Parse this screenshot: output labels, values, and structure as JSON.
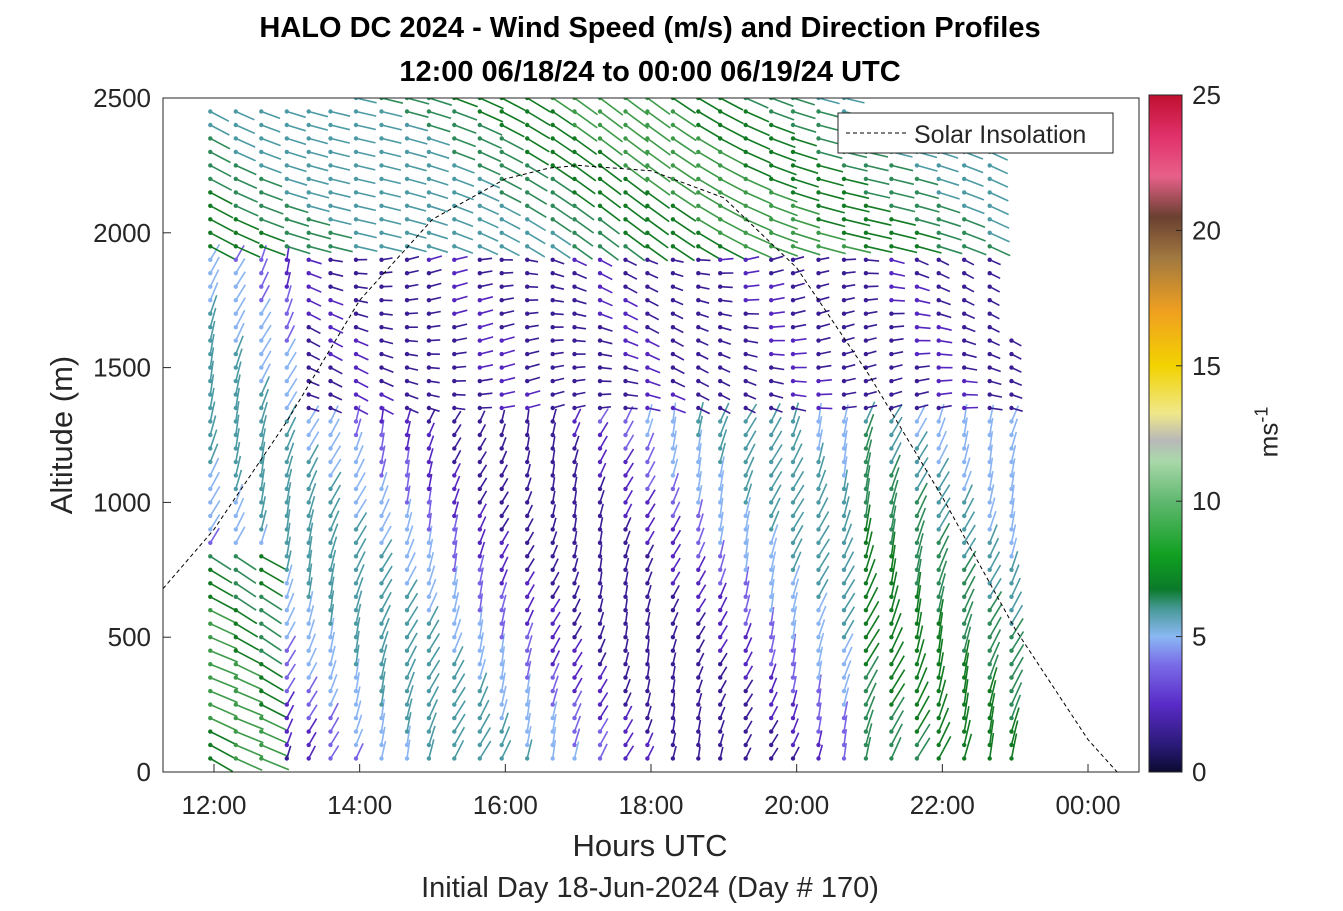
{
  "title_line1": "HALO DC 2024 - Wind Speed (m/s) and Direction Profiles",
  "title_line2": "12:00 06/18/24 to 00:00 06/19/24  UTC",
  "subtitle": "Initial Day 18-Jun-2024 (Day # 170)",
  "colorbar": {
    "label_base": "ms",
    "label_exp": "-1",
    "min": 0,
    "max": 25,
    "ticks": [
      0,
      5,
      10,
      15,
      20,
      25
    ]
  },
  "chart_data": {
    "type": "quiver",
    "xlabel": "Hours UTC",
    "ylabel": "Altitude (m)",
    "xlim": [
      11.3,
      24.7
    ],
    "ylim": [
      0,
      2500
    ],
    "xticks": [
      12,
      14,
      16,
      18,
      20,
      22,
      24
    ],
    "xtick_labels": [
      "12:00",
      "14:00",
      "16:00",
      "18:00",
      "20:00",
      "22:00",
      "00:00"
    ],
    "yticks": [
      0,
      500,
      1000,
      1500,
      2000,
      2500
    ],
    "legend": {
      "entries": [
        "Solar Insolation"
      ],
      "position": "top-right"
    },
    "solar_insolation": {
      "x": [
        11.3,
        12.0,
        13.0,
        14.0,
        15.0,
        16.0,
        16.6,
        17.0,
        18.0,
        19.0,
        20.0,
        21.0,
        22.0,
        23.0,
        24.0,
        24.4,
        24.6
      ],
      "y": [
        680,
        900,
        1300,
        1750,
        2050,
        2200,
        2240,
        2250,
        2230,
        2130,
        1870,
        1470,
        1020,
        530,
        120,
        0,
        0
      ]
    },
    "profile_times": [
      11.95,
      12.3,
      12.65,
      13.0,
      13.3,
      13.6,
      13.95,
      14.3,
      14.65,
      14.95,
      15.3,
      15.65,
      15.95,
      16.3,
      16.65,
      16.95,
      17.3,
      17.65,
      17.95,
      18.3,
      18.65,
      18.95,
      19.3,
      19.65,
      19.95,
      20.3,
      20.65,
      20.95,
      21.3,
      21.65,
      21.95,
      22.3,
      22.65,
      22.95
    ],
    "altitude_step_m": 50,
    "notes_regions": [
      {
        "alt_range": [
          0,
          800
        ],
        "time_range": [
          11.9,
          13.0
        ],
        "speed_ms": 8,
        "direction": "from west-southwest"
      },
      {
        "alt_range": [
          0,
          1300
        ],
        "time_range": [
          13.0,
          23.0
        ],
        "speed_ms": 3,
        "direction": "from north-northeast"
      },
      {
        "alt_range": [
          1300,
          1900
        ],
        "time_range": [
          13.0,
          23.0
        ],
        "speed_ms": 1.5,
        "direction": "from east"
      },
      {
        "alt_range": [
          1900,
          2500
        ],
        "time_range": [
          12.0,
          23.0
        ],
        "speed_ms": 6,
        "direction": "from southwest"
      }
    ]
  }
}
